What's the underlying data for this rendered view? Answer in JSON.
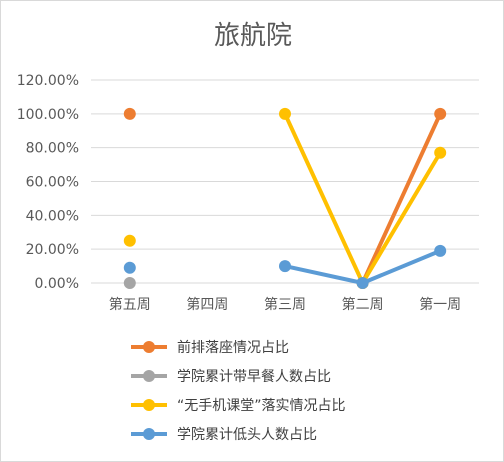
{
  "chart_data": {
    "type": "line",
    "title": "旅航院",
    "categories": [
      "第五周",
      "第四周",
      "第三周",
      "第二周",
      "第一周"
    ],
    "y_tick_labels": [
      "0.00%",
      "20.00%",
      "40.00%",
      "60.00%",
      "80.00%",
      "100.00%",
      "120.00%"
    ],
    "ylim": [
      0,
      1.2
    ],
    "grid": true,
    "legend_position": "bottom",
    "series": [
      {
        "name": "前排落座情况占比",
        "color": "#ed7d31",
        "values": [
          1.0,
          null,
          null,
          0.0,
          1.0
        ]
      },
      {
        "name": "学院累计带早餐人数占比",
        "color": "#a5a5a5",
        "values": [
          0.0,
          null,
          null,
          null,
          null
        ]
      },
      {
        "name": "“无手机课堂”落实情况占比",
        "color": "#ffc000",
        "values": [
          0.25,
          null,
          1.0,
          0.0,
          0.77
        ]
      },
      {
        "name": "学院累计低头人数占比",
        "color": "#5b9bd5",
        "values": [
          0.09,
          null,
          0.1,
          0.0,
          0.19
        ]
      }
    ]
  }
}
